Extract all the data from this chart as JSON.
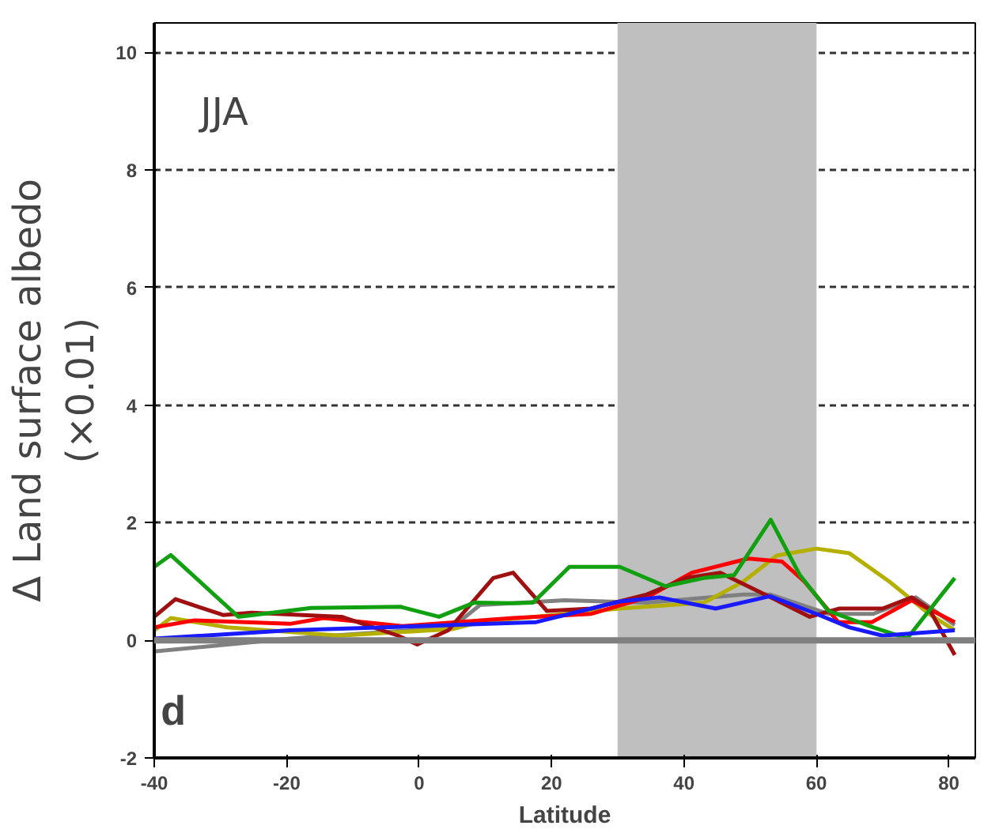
{
  "chart_data": {
    "type": "line",
    "xlabel": "Latitude",
    "ylabel": "Δ Land surface albedo\n(×0.01)",
    "annotations": [
      "JJA",
      "d"
    ],
    "xlim": [
      -40,
      84
    ],
    "xticks": [
      -40,
      -20,
      0,
      20,
      40,
      60,
      80
    ],
    "ylim": [
      -2,
      10.5
    ],
    "yticks": [
      -2,
      0,
      2,
      4,
      6,
      8,
      10
    ],
    "grid": "y",
    "line_style": "solid",
    "ref_lines": [
      {
        "axis": "y",
        "value": 0,
        "color": "#808080"
      }
    ],
    "bands": [
      {
        "axis": "x",
        "from": 30,
        "to": 60,
        "color": "#bfbfbf"
      }
    ],
    "series": [
      {
        "color": "#808080",
        "x": [
          -40,
          -19.5,
          5,
          9.2,
          22,
          34.4,
          49,
          53,
          61.8,
          68.6,
          75,
          80.9
        ],
        "values": [
          -0.19,
          0.03,
          0.22,
          0.6,
          0.68,
          0.64,
          0.78,
          0.78,
          0.45,
          0.45,
          0.73,
          0.26
        ]
      },
      {
        "color": "#b5b000",
        "x": [
          -40,
          -37.5,
          -29,
          -12,
          5,
          9.2,
          30.3,
          43,
          49,
          54,
          60,
          65,
          71,
          77,
          80.9
        ],
        "values": [
          0.17,
          0.38,
          0.22,
          0.08,
          0.19,
          0.31,
          0.54,
          0.64,
          1.0,
          1.44,
          1.56,
          1.48,
          1.0,
          0.45,
          0.17
        ]
      },
      {
        "color": "#ff0000",
        "x": [
          -40,
          -33.9,
          -19.5,
          -14.4,
          -2.5,
          14.2,
          26,
          34.4,
          41.2,
          49.7,
          54.8,
          58.2,
          63.3,
          68.4,
          74.4,
          80.9
        ],
        "values": [
          0.22,
          0.34,
          0.28,
          0.38,
          0.24,
          0.38,
          0.45,
          0.73,
          1.15,
          1.39,
          1.34,
          1.0,
          0.31,
          0.31,
          0.68,
          0.31
        ]
      },
      {
        "color": "#a01010",
        "x": [
          -40,
          -36.8,
          -29.6,
          -25.3,
          -11.7,
          -3.2,
          -0.3,
          4.4,
          11.2,
          14.2,
          19.3,
          26,
          34.4,
          40.4,
          45.5,
          54,
          59,
          63.5,
          70,
          74.4,
          77,
          80.9
        ],
        "values": [
          0.4,
          0.7,
          0.43,
          0.47,
          0.4,
          0.08,
          -0.07,
          0.17,
          1.06,
          1.15,
          0.5,
          0.54,
          0.78,
          1.06,
          1.15,
          0.68,
          0.4,
          0.54,
          0.54,
          0.73,
          0.54,
          -0.25
        ]
      },
      {
        "color": "#10a010",
        "x": [
          -40,
          -37.5,
          -27.3,
          -16.3,
          -2.8,
          3,
          8.3,
          14.2,
          17.2,
          22.7,
          30.3,
          37.2,
          43,
          47.6,
          53.1,
          57.5,
          61.8,
          68.6,
          73.7,
          80.9
        ],
        "values": [
          1.25,
          1.45,
          0.4,
          0.55,
          0.57,
          0.4,
          0.64,
          0.63,
          0.64,
          1.25,
          1.25,
          0.92,
          1.06,
          1.11,
          2.05,
          1.11,
          0.5,
          0.22,
          0.03,
          1.06
        ]
      },
      {
        "color": "#1a1aff",
        "x": [
          -40,
          -19.5,
          5.2,
          17.7,
          30.3,
          36.3,
          44.8,
          53,
          60,
          65,
          70,
          80.9
        ],
        "values": [
          0.03,
          0.17,
          0.26,
          0.31,
          0.66,
          0.73,
          0.54,
          0.75,
          0.45,
          0.22,
          0.08,
          0.17
        ]
      }
    ]
  }
}
